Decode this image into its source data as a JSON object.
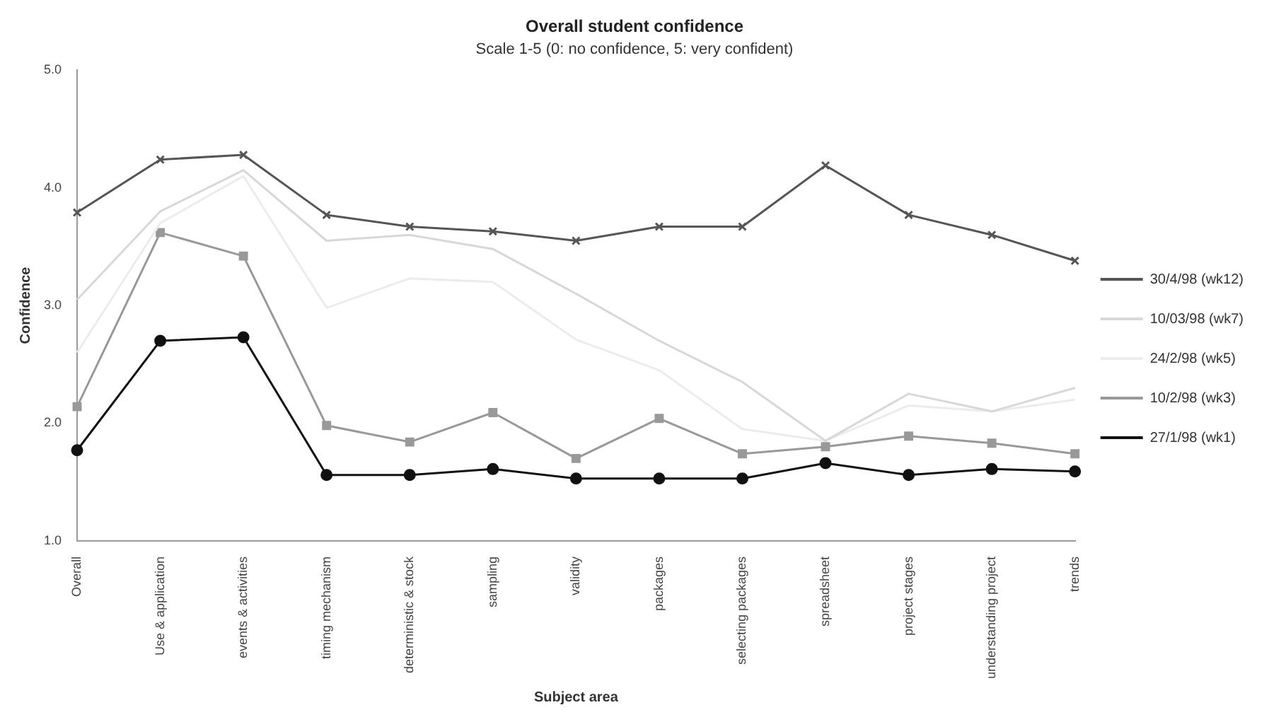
{
  "chart_data": {
    "type": "line",
    "title": "Overall student confidence",
    "subtitle": "Scale 1-5 (0: no confidence, 5: very confident)",
    "xlabel": "Subject area",
    "ylabel": "Confidence",
    "categories": [
      "Overall",
      "Use & application",
      "events & activities",
      "timing mechanism",
      "deterministic & stock",
      "sampling",
      "validity",
      "packages",
      "selecting packages",
      "spreadsheet",
      "project stages",
      "understanding project",
      "trends"
    ],
    "series": [
      {
        "name": "30/4/98 (wk12)",
        "color": "#555555",
        "marker": "cross",
        "values": [
          3.79,
          4.24,
          4.28,
          3.77,
          3.67,
          3.63,
          3.55,
          3.67,
          3.67,
          4.19,
          3.77,
          3.6,
          3.38
        ]
      },
      {
        "name": "10/03/98 (wk7)",
        "color": "#d8d8d8",
        "marker": "none",
        "values": [
          3.05,
          3.8,
          4.15,
          3.55,
          3.6,
          3.48,
          3.1,
          2.7,
          2.35,
          1.85,
          2.25,
          2.1,
          2.3
        ]
      },
      {
        "name": "24/2/98 (wk5)",
        "color": "#ececec",
        "marker": "none",
        "values": [
          2.6,
          3.7,
          4.1,
          2.98,
          3.23,
          3.2,
          2.71,
          2.45,
          1.95,
          1.85,
          2.15,
          2.1,
          2.2
        ]
      },
      {
        "name": "10/2/98 (wk3)",
        "color": "#999999",
        "marker": "square",
        "values": [
          2.14,
          3.62,
          3.42,
          1.98,
          1.84,
          2.09,
          1.7,
          2.04,
          1.74,
          1.8,
          1.89,
          1.83,
          1.74
        ]
      },
      {
        "name": "27/1/98 (wk1)",
        "color": "#111111",
        "marker": "circle",
        "values": [
          1.77,
          2.7,
          2.73,
          1.56,
          1.56,
          1.61,
          1.53,
          1.53,
          1.53,
          1.66,
          1.56,
          1.61,
          1.59
        ]
      }
    ],
    "ylim": [
      1,
      5
    ],
    "yticks": [
      {
        "value": 1,
        "label": "1.0"
      },
      {
        "value": 2,
        "label": "2.0"
      },
      {
        "value": 3,
        "label": "3.0"
      },
      {
        "value": 4,
        "label": "4.0"
      },
      {
        "value": 5,
        "label": "5.0"
      }
    ],
    "grid": false,
    "legend": "right",
    "line_style": "solid"
  }
}
